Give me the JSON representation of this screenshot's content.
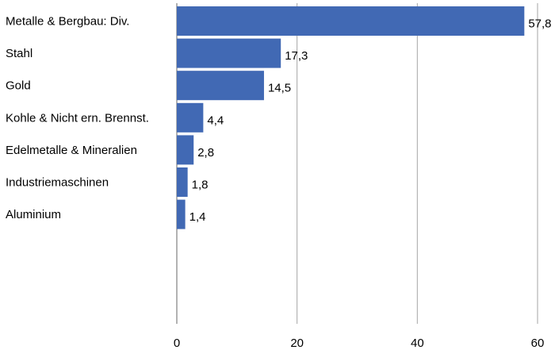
{
  "chart_data": {
    "type": "bar",
    "orientation": "horizontal",
    "categories": [
      "Metalle & Bergbau: Div.",
      "Stahl",
      "Gold",
      "Kohle & Nicht ern. Brennst.",
      "Edelmetalle & Mineralien",
      "Industriemaschinen",
      "Aluminium"
    ],
    "values": [
      57.8,
      17.3,
      14.5,
      4.4,
      2.8,
      1.8,
      1.4
    ],
    "value_labels": [
      "57,8",
      "17,3",
      "14,5",
      "4,4",
      "2,8",
      "1,8",
      "1,4"
    ],
    "xlim": [
      0,
      60
    ],
    "xticks": [
      0,
      20,
      40,
      60
    ],
    "xtick_labels": [
      "0",
      "20",
      "40",
      "60"
    ],
    "grid": true,
    "legend": false,
    "title": "",
    "xlabel": "",
    "ylabel": "",
    "colors": {
      "bar": "#4169b4",
      "grid": "#a6a6a6",
      "axis": "#7f7f7f"
    }
  }
}
